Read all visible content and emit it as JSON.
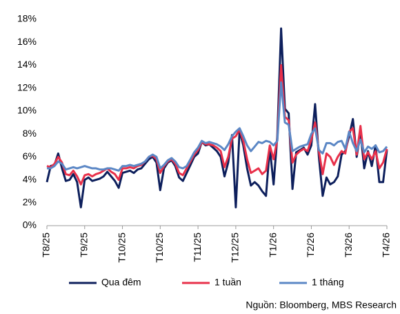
{
  "chart_data": {
    "type": "line",
    "categories": [
      "T8/25",
      null,
      null,
      null,
      null,
      null,
      null,
      null,
      null,
      null,
      "T9/25",
      null,
      null,
      null,
      null,
      null,
      null,
      null,
      null,
      null,
      "T10/25",
      null,
      null,
      null,
      null,
      null,
      null,
      null,
      null,
      null,
      "T10/25",
      null,
      null,
      null,
      null,
      null,
      null,
      null,
      null,
      null,
      "T11/25",
      null,
      null,
      null,
      null,
      null,
      null,
      null,
      null,
      null,
      "T12/25",
      null,
      null,
      null,
      null,
      null,
      null,
      null,
      null,
      null,
      "T1/26",
      null,
      null,
      null,
      null,
      null,
      null,
      null,
      null,
      null,
      "T2/26",
      null,
      null,
      null,
      null,
      null,
      null,
      null,
      null,
      null,
      "T3/26",
      null,
      null,
      null,
      null,
      null,
      null,
      null,
      null,
      null,
      "T4/26"
    ],
    "series": [
      {
        "name": "Qua đêm",
        "color": "#0d1f5c",
        "values": [
          3.8,
          5.2,
          5.3,
          6.3,
          5.0,
          3.9,
          4.0,
          4.5,
          3.8,
          1.6,
          4.0,
          4.2,
          3.9,
          4.0,
          4.1,
          4.3,
          4.7,
          4.3,
          3.9,
          3.3,
          4.6,
          4.7,
          4.8,
          4.6,
          4.9,
          5.0,
          5.4,
          5.8,
          6.0,
          5.5,
          3.1,
          5.0,
          5.5,
          5.7,
          5.2,
          4.2,
          3.9,
          4.6,
          5.3,
          6.0,
          6.3,
          7.3,
          7.0,
          7.1,
          6.8,
          6.5,
          6.0,
          4.3,
          5.5,
          7.9,
          1.6,
          8.3,
          7.0,
          5.0,
          3.5,
          3.8,
          3.5,
          3.0,
          2.6,
          6.8,
          3.6,
          7.8,
          17.2,
          10.2,
          9.8,
          3.2,
          6.4,
          6.6,
          6.8,
          6.2,
          7.0,
          10.6,
          6.0,
          2.6,
          4.2,
          3.6,
          3.8,
          4.3,
          6.2,
          6.5,
          7.8,
          9.3,
          6.0,
          8.2,
          5.0,
          6.5,
          5.2,
          7.0,
          3.8,
          3.8,
          6.6
        ]
      },
      {
        "name": "1 tuần",
        "color": "#e8304a",
        "values": [
          5.2,
          5.1,
          5.4,
          6.0,
          5.5,
          4.5,
          4.4,
          4.8,
          4.3,
          3.6,
          4.4,
          4.5,
          4.3,
          4.5,
          4.6,
          4.8,
          5.0,
          4.7,
          4.5,
          4.0,
          5.0,
          5.0,
          5.1,
          5.0,
          5.2,
          5.3,
          5.6,
          6.0,
          6.1,
          5.8,
          4.6,
          5.2,
          5.6,
          5.8,
          5.4,
          4.6,
          4.4,
          5.0,
          5.6,
          6.2,
          6.6,
          7.3,
          7.1,
          7.1,
          7.0,
          6.8,
          6.5,
          5.1,
          6.0,
          7.6,
          7.8,
          8.4,
          7.4,
          5.8,
          4.6,
          4.8,
          5.0,
          4.5,
          4.8,
          7.0,
          5.8,
          7.5,
          14.0,
          9.5,
          9.2,
          5.5,
          6.2,
          6.5,
          6.7,
          6.5,
          7.5,
          9.0,
          6.5,
          4.5,
          6.3,
          6.0,
          5.3,
          6.0,
          6.5,
          6.3,
          8.2,
          8.5,
          6.2,
          8.7,
          5.8,
          6.4,
          5.8,
          6.5,
          5.0,
          5.5,
          6.7
        ]
      },
      {
        "name": "1 tháng",
        "color": "#5b87c5",
        "values": [
          5.0,
          5.0,
          5.2,
          5.6,
          5.4,
          4.9,
          5.0,
          5.1,
          5.0,
          5.1,
          5.2,
          5.1,
          5.0,
          5.0,
          4.9,
          4.9,
          5.0,
          5.0,
          4.9,
          4.8,
          5.2,
          5.2,
          5.3,
          5.2,
          5.3,
          5.4,
          5.6,
          6.0,
          6.2,
          6.0,
          5.0,
          5.3,
          5.7,
          5.9,
          5.6,
          5.1,
          5.0,
          5.2,
          5.8,
          6.4,
          6.8,
          7.4,
          7.2,
          7.3,
          7.2,
          7.1,
          6.9,
          6.6,
          7.1,
          7.8,
          8.2,
          8.5,
          7.8,
          7.0,
          6.5,
          6.9,
          7.3,
          7.2,
          7.4,
          7.3,
          7.0,
          7.4,
          12.5,
          9.0,
          8.8,
          6.5,
          6.7,
          6.9,
          7.0,
          7.1,
          8.0,
          8.5,
          6.6,
          6.3,
          7.2,
          7.2,
          7.0,
          7.3,
          7.4,
          6.7,
          8.2,
          7.2,
          6.5,
          7.5,
          6.4,
          6.9,
          6.7,
          7.0,
          6.4,
          6.5,
          6.9
        ]
      }
    ],
    "ylim": [
      0,
      18
    ],
    "yticks": [
      {
        "value": 0,
        "label": "0%"
      },
      {
        "value": 2,
        "label": "2%"
      },
      {
        "value": 4,
        "label": "4%"
      },
      {
        "value": 6,
        "label": "6%"
      },
      {
        "value": 8,
        "label": "8%"
      },
      {
        "value": 10,
        "label": "10%"
      },
      {
        "value": 12,
        "label": "12%"
      },
      {
        "value": 14,
        "label": "14%"
      },
      {
        "value": 16,
        "label": "16%"
      },
      {
        "value": 18,
        "label": "18%"
      }
    ],
    "grid": false,
    "legend": "bottom",
    "source": "Nguồn: Bloomberg, MBS Research"
  }
}
